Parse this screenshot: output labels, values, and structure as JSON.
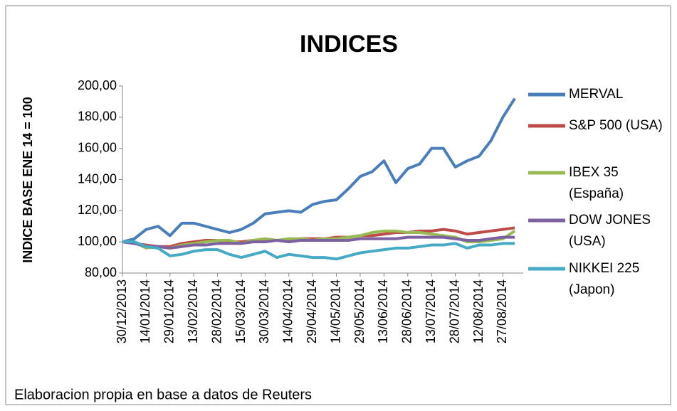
{
  "chart_data": {
    "type": "line",
    "title": "INDICES",
    "y_label": "INDICE BASE  ENE 14 = 100",
    "source": "Elaboracion propia en base a datos de Reuters",
    "categories": [
      "30/12/2013",
      null,
      "14/01/2014",
      null,
      "29/01/2014",
      null,
      "13/02/2014",
      null,
      "28/02/2014",
      null,
      "15/03/2014",
      null,
      "30/03/2014",
      null,
      "14/04/2014",
      null,
      "29/04/2014",
      null,
      "14/05/2014",
      null,
      "29/05/2014",
      null,
      "13/06/2014",
      null,
      "28/06/2014",
      null,
      "13/07/2014",
      null,
      "28/07/2014",
      null,
      "12/08/2014",
      null,
      "27/08/2014",
      null
    ],
    "series": [
      {
        "name": "MERVAL",
        "color": "#4a7ebb",
        "values": [
          100,
          102,
          108,
          110,
          104,
          112,
          112,
          110,
          108,
          106,
          108,
          112,
          118,
          119,
          120,
          119,
          124,
          126,
          127,
          134,
          142,
          145,
          152,
          138,
          147,
          150,
          160,
          160,
          148,
          152,
          155,
          165,
          180,
          192
        ]
      },
      {
        "name": "S&P 500 (USA)",
        "color": "#be4b48",
        "values": [
          100,
          99,
          98,
          97,
          97,
          99,
          100,
          101,
          101,
          100,
          100,
          101,
          101,
          101,
          101,
          102,
          102,
          102,
          103,
          103,
          104,
          104,
          105,
          106,
          106,
          107,
          107,
          108,
          107,
          105,
          106,
          107,
          108,
          109
        ]
      },
      {
        "name": "IBEX 35 (España)",
        "color": "#98b954",
        "values": [
          100,
          100,
          96,
          97,
          96,
          98,
          99,
          100,
          101,
          101,
          99,
          101,
          102,
          101,
          102,
          102,
          101,
          102,
          102,
          103,
          104,
          106,
          107,
          107,
          106,
          106,
          105,
          104,
          103,
          100,
          100,
          101,
          102,
          107
        ]
      },
      {
        "name": "DOW JONES (USA)",
        "color": "#7d60a0",
        "values": [
          100,
          99,
          97,
          97,
          96,
          97,
          98,
          98,
          99,
          99,
          99,
          100,
          100,
          101,
          100,
          101,
          101,
          101,
          101,
          101,
          102,
          102,
          102,
          102,
          103,
          103,
          103,
          103,
          102,
          101,
          101,
          102,
          103,
          103
        ]
      },
      {
        "name": "NIKKEI 225 (Japon)",
        "color": "#46aac5",
        "values": [
          100,
          100,
          97,
          96,
          91,
          92,
          94,
          95,
          95,
          92,
          90,
          92,
          94,
          90,
          92,
          91,
          90,
          90,
          89,
          91,
          93,
          94,
          95,
          96,
          96,
          97,
          98,
          98,
          99,
          96,
          98,
          98,
          99,
          99
        ]
      }
    ],
    "ylim": [
      80,
      200
    ],
    "yticks": [
      {
        "value": 80,
        "label": "80,00"
      },
      {
        "value": 100,
        "label": "100,00"
      },
      {
        "value": 120,
        "label": "120,00"
      },
      {
        "value": 140,
        "label": "140,00"
      },
      {
        "value": 160,
        "label": "160,00"
      },
      {
        "value": 180,
        "label": "180,00"
      },
      {
        "value": 200,
        "label": "200,00"
      }
    ],
    "legend": "right",
    "grid": false
  }
}
